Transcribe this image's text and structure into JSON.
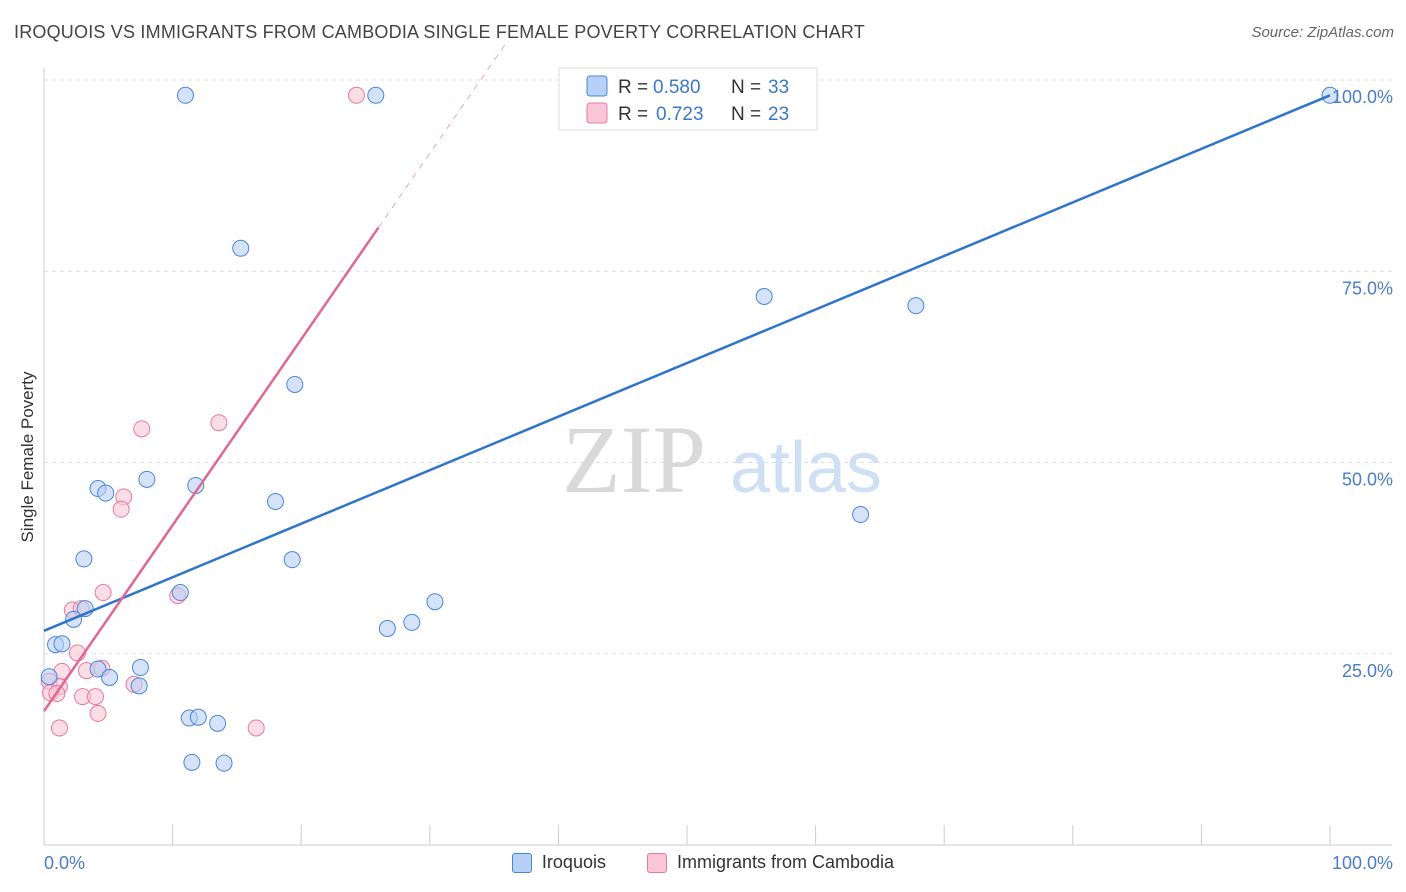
{
  "header": {
    "title": "IROQUOIS VS IMMIGRANTS FROM CAMBODIA SINGLE FEMALE POVERTY CORRELATION CHART",
    "source": "Source: ZipAtlas.com"
  },
  "watermark": {
    "zip": "ZIP",
    "atlas": "atlas"
  },
  "colors": {
    "blue": "#4a86d8",
    "blue_fill": "#b7d0f5",
    "blue_line": "#2f74cc",
    "pink": "#e8799e",
    "pink_fill": "#f8c6d6",
    "pink_line": "#e06890",
    "grid": "#dddddd",
    "tick_label": "#4a7cc9"
  },
  "chart_data": {
    "type": "scatter",
    "title": "IROQUOIS VS IMMIGRANTS FROM CAMBODIA SINGLE FEMALE POVERTY CORRELATION CHART",
    "xlabel": "",
    "ylabel": "Single Female Poverty",
    "xlim": [
      0,
      100
    ],
    "ylim": [
      0,
      100
    ],
    "x_tick_labels": [
      "0.0%",
      "100.0%"
    ],
    "y_ticks": [
      25,
      50,
      75,
      100
    ],
    "y_tick_labels": [
      "25.0%",
      "50.0%",
      "75.0%",
      "100.0%"
    ],
    "grid": true,
    "legend_top": [
      {
        "r_label": "R =",
        "r_value": "0.580",
        "n_label": "N =",
        "n_value": "33"
      },
      {
        "r_label": "R =",
        "r_value": "0.723",
        "n_label": "N =",
        "n_value": "23"
      }
    ],
    "series": [
      {
        "name": "Iroquois",
        "color": "#4a86d8",
        "trend": {
          "x0": 0,
          "y0": 28.0,
          "x1": 100,
          "y1": 98.0,
          "solid_to": 100
        },
        "points": [
          [
            11.0,
            98.0
          ],
          [
            25.8,
            98.0
          ],
          [
            100,
            98.0
          ],
          [
            15.3,
            78.0
          ],
          [
            56.0,
            71.7
          ],
          [
            67.8,
            70.5
          ],
          [
            19.5,
            60.2
          ],
          [
            4.2,
            46.6
          ],
          [
            8.0,
            47.8
          ],
          [
            4.8,
            46.0
          ],
          [
            11.8,
            47.0
          ],
          [
            18.0,
            44.9
          ],
          [
            63.5,
            43.2
          ],
          [
            3.1,
            37.4
          ],
          [
            19.3,
            37.3
          ],
          [
            10.6,
            33.0
          ],
          [
            3.2,
            30.9
          ],
          [
            2.3,
            29.5
          ],
          [
            30.4,
            31.8
          ],
          [
            26.7,
            28.3
          ],
          [
            28.6,
            29.1
          ],
          [
            0.9,
            26.2
          ],
          [
            1.4,
            26.3
          ],
          [
            4.2,
            23.0
          ],
          [
            7.5,
            23.2
          ],
          [
            0.4,
            22.0
          ],
          [
            5.1,
            21.9
          ],
          [
            7.4,
            20.8
          ],
          [
            11.3,
            16.6
          ],
          [
            12.0,
            16.7
          ],
          [
            13.5,
            15.9
          ],
          [
            11.5,
            10.8
          ],
          [
            14.0,
            10.7
          ]
        ]
      },
      {
        "name": "Immigrants from Cambodia",
        "color": "#e8799e",
        "trend": {
          "x0": 0,
          "y0": 17.5,
          "x1": 36.0,
          "y1": 105.0,
          "solid_to": 26.0
        },
        "points": [
          [
            24.3,
            98.0
          ],
          [
            13.6,
            55.2
          ],
          [
            7.6,
            54.4
          ],
          [
            6.2,
            45.5
          ],
          [
            6.0,
            43.9
          ],
          [
            4.6,
            33.0
          ],
          [
            10.4,
            32.6
          ],
          [
            2.2,
            30.7
          ],
          [
            2.9,
            30.9
          ],
          [
            2.6,
            25.1
          ],
          [
            4.5,
            23.1
          ],
          [
            3.3,
            22.8
          ],
          [
            1.4,
            22.7
          ],
          [
            0.4,
            21.4
          ],
          [
            1.2,
            20.7
          ],
          [
            0.5,
            19.9
          ],
          [
            1.0,
            19.8
          ],
          [
            3.0,
            19.4
          ],
          [
            4.0,
            19.4
          ],
          [
            7.0,
            21.0
          ],
          [
            4.2,
            17.2
          ],
          [
            1.2,
            15.3
          ],
          [
            16.5,
            15.3
          ]
        ]
      }
    ]
  },
  "legend_bottom": [
    {
      "label": "Iroquois"
    },
    {
      "label": "Immigrants from Cambodia"
    }
  ]
}
